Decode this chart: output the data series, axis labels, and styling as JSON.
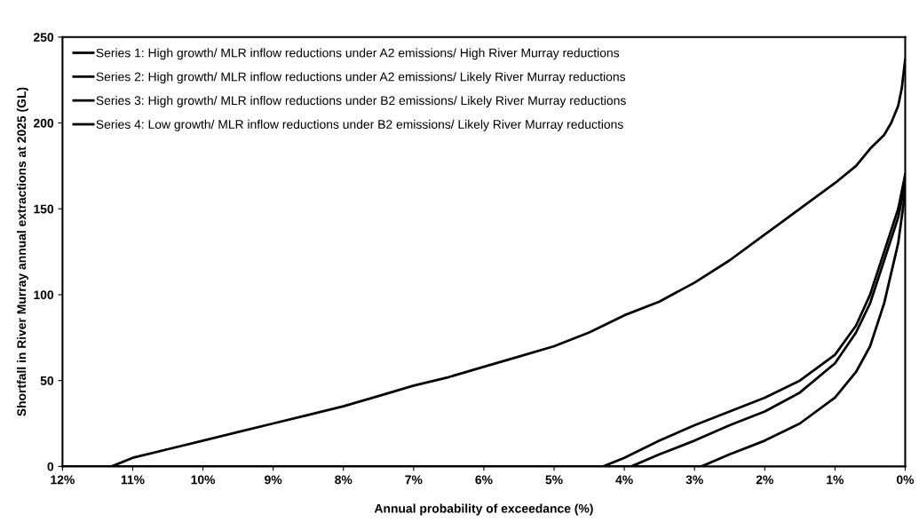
{
  "chart_data": {
    "type": "line",
    "xlabel": "Annual probability of exceedance (%)",
    "ylabel": "Shortfall in River Murray annual extractions at 2025 (GL)",
    "xlim": [
      12,
      0
    ],
    "xticks": [
      {
        "value": 12,
        "label": "12%"
      },
      {
        "value": 11,
        "label": "11%"
      },
      {
        "value": 10,
        "label": "10%"
      },
      {
        "value": 9,
        "label": "9%"
      },
      {
        "value": 8,
        "label": "8%"
      },
      {
        "value": 7,
        "label": "7%"
      },
      {
        "value": 6,
        "label": "6%"
      },
      {
        "value": 5,
        "label": "5%"
      },
      {
        "value": 4,
        "label": "4%"
      },
      {
        "value": 3,
        "label": "3%"
      },
      {
        "value": 2,
        "label": "2%"
      },
      {
        "value": 1,
        "label": "1%"
      },
      {
        "value": 0,
        "label": "0%"
      }
    ],
    "ylim": [
      0,
      250
    ],
    "yticks": [
      0,
      50,
      100,
      150,
      200,
      250
    ],
    "grid": false,
    "legend": "top left",
    "marker": "none",
    "line_style": "solid",
    "series": [
      {
        "name": "Series 1: High growth/ MLR inflow reductions under A2 emissions/ High River Murray reductions",
        "color": "#000000",
        "x": [
          12,
          11.3,
          11,
          10.5,
          10,
          9.5,
          9,
          8.5,
          8,
          7.5,
          7,
          6.5,
          6,
          5.5,
          5,
          4.5,
          4,
          3.5,
          3,
          2.5,
          2,
          1.5,
          1,
          0.7,
          0.5,
          0.3,
          0.2,
          0.1,
          0.05,
          0
        ],
        "values": [
          0,
          0,
          5,
          10,
          15,
          20,
          25,
          30,
          35,
          41,
          47,
          52,
          58,
          64,
          70,
          78,
          88,
          96,
          107,
          120,
          135,
          150,
          165,
          175,
          185,
          193,
          200,
          210,
          220,
          237
        ]
      },
      {
        "name": "Series 2: High growth/ MLR inflow reductions under A2 emissions/ Likely River Murray reductions",
        "color": "#000000",
        "x": [
          12,
          4.3,
          4,
          3.5,
          3,
          2.5,
          2,
          1.5,
          1,
          0.7,
          0.5,
          0.3,
          0.1,
          0
        ],
        "values": [
          0,
          0,
          5,
          15,
          24,
          32,
          40,
          50,
          65,
          82,
          100,
          125,
          150,
          170
        ]
      },
      {
        "name": "Series 3: High growth/ MLR inflow reductions under B2 emissions/ Likely River Murray reductions",
        "color": "#000000",
        "x": [
          12,
          3.9,
          3.5,
          3,
          2.5,
          2,
          1.5,
          1,
          0.7,
          0.5,
          0.3,
          0.1,
          0
        ],
        "values": [
          0,
          0,
          7,
          15,
          24,
          32,
          43,
          60,
          78,
          95,
          120,
          145,
          165
        ]
      },
      {
        "name": "Series 4: Low growth/ MLR inflow reductions under B2 emissions/ Likely River Murray reductions",
        "color": "#000000",
        "x": [
          12,
          2.9,
          2.5,
          2,
          1.5,
          1,
          0.7,
          0.5,
          0.3,
          0.1,
          0
        ],
        "values": [
          0,
          0,
          7,
          15,
          25,
          40,
          55,
          70,
          95,
          130,
          160
        ]
      }
    ]
  }
}
